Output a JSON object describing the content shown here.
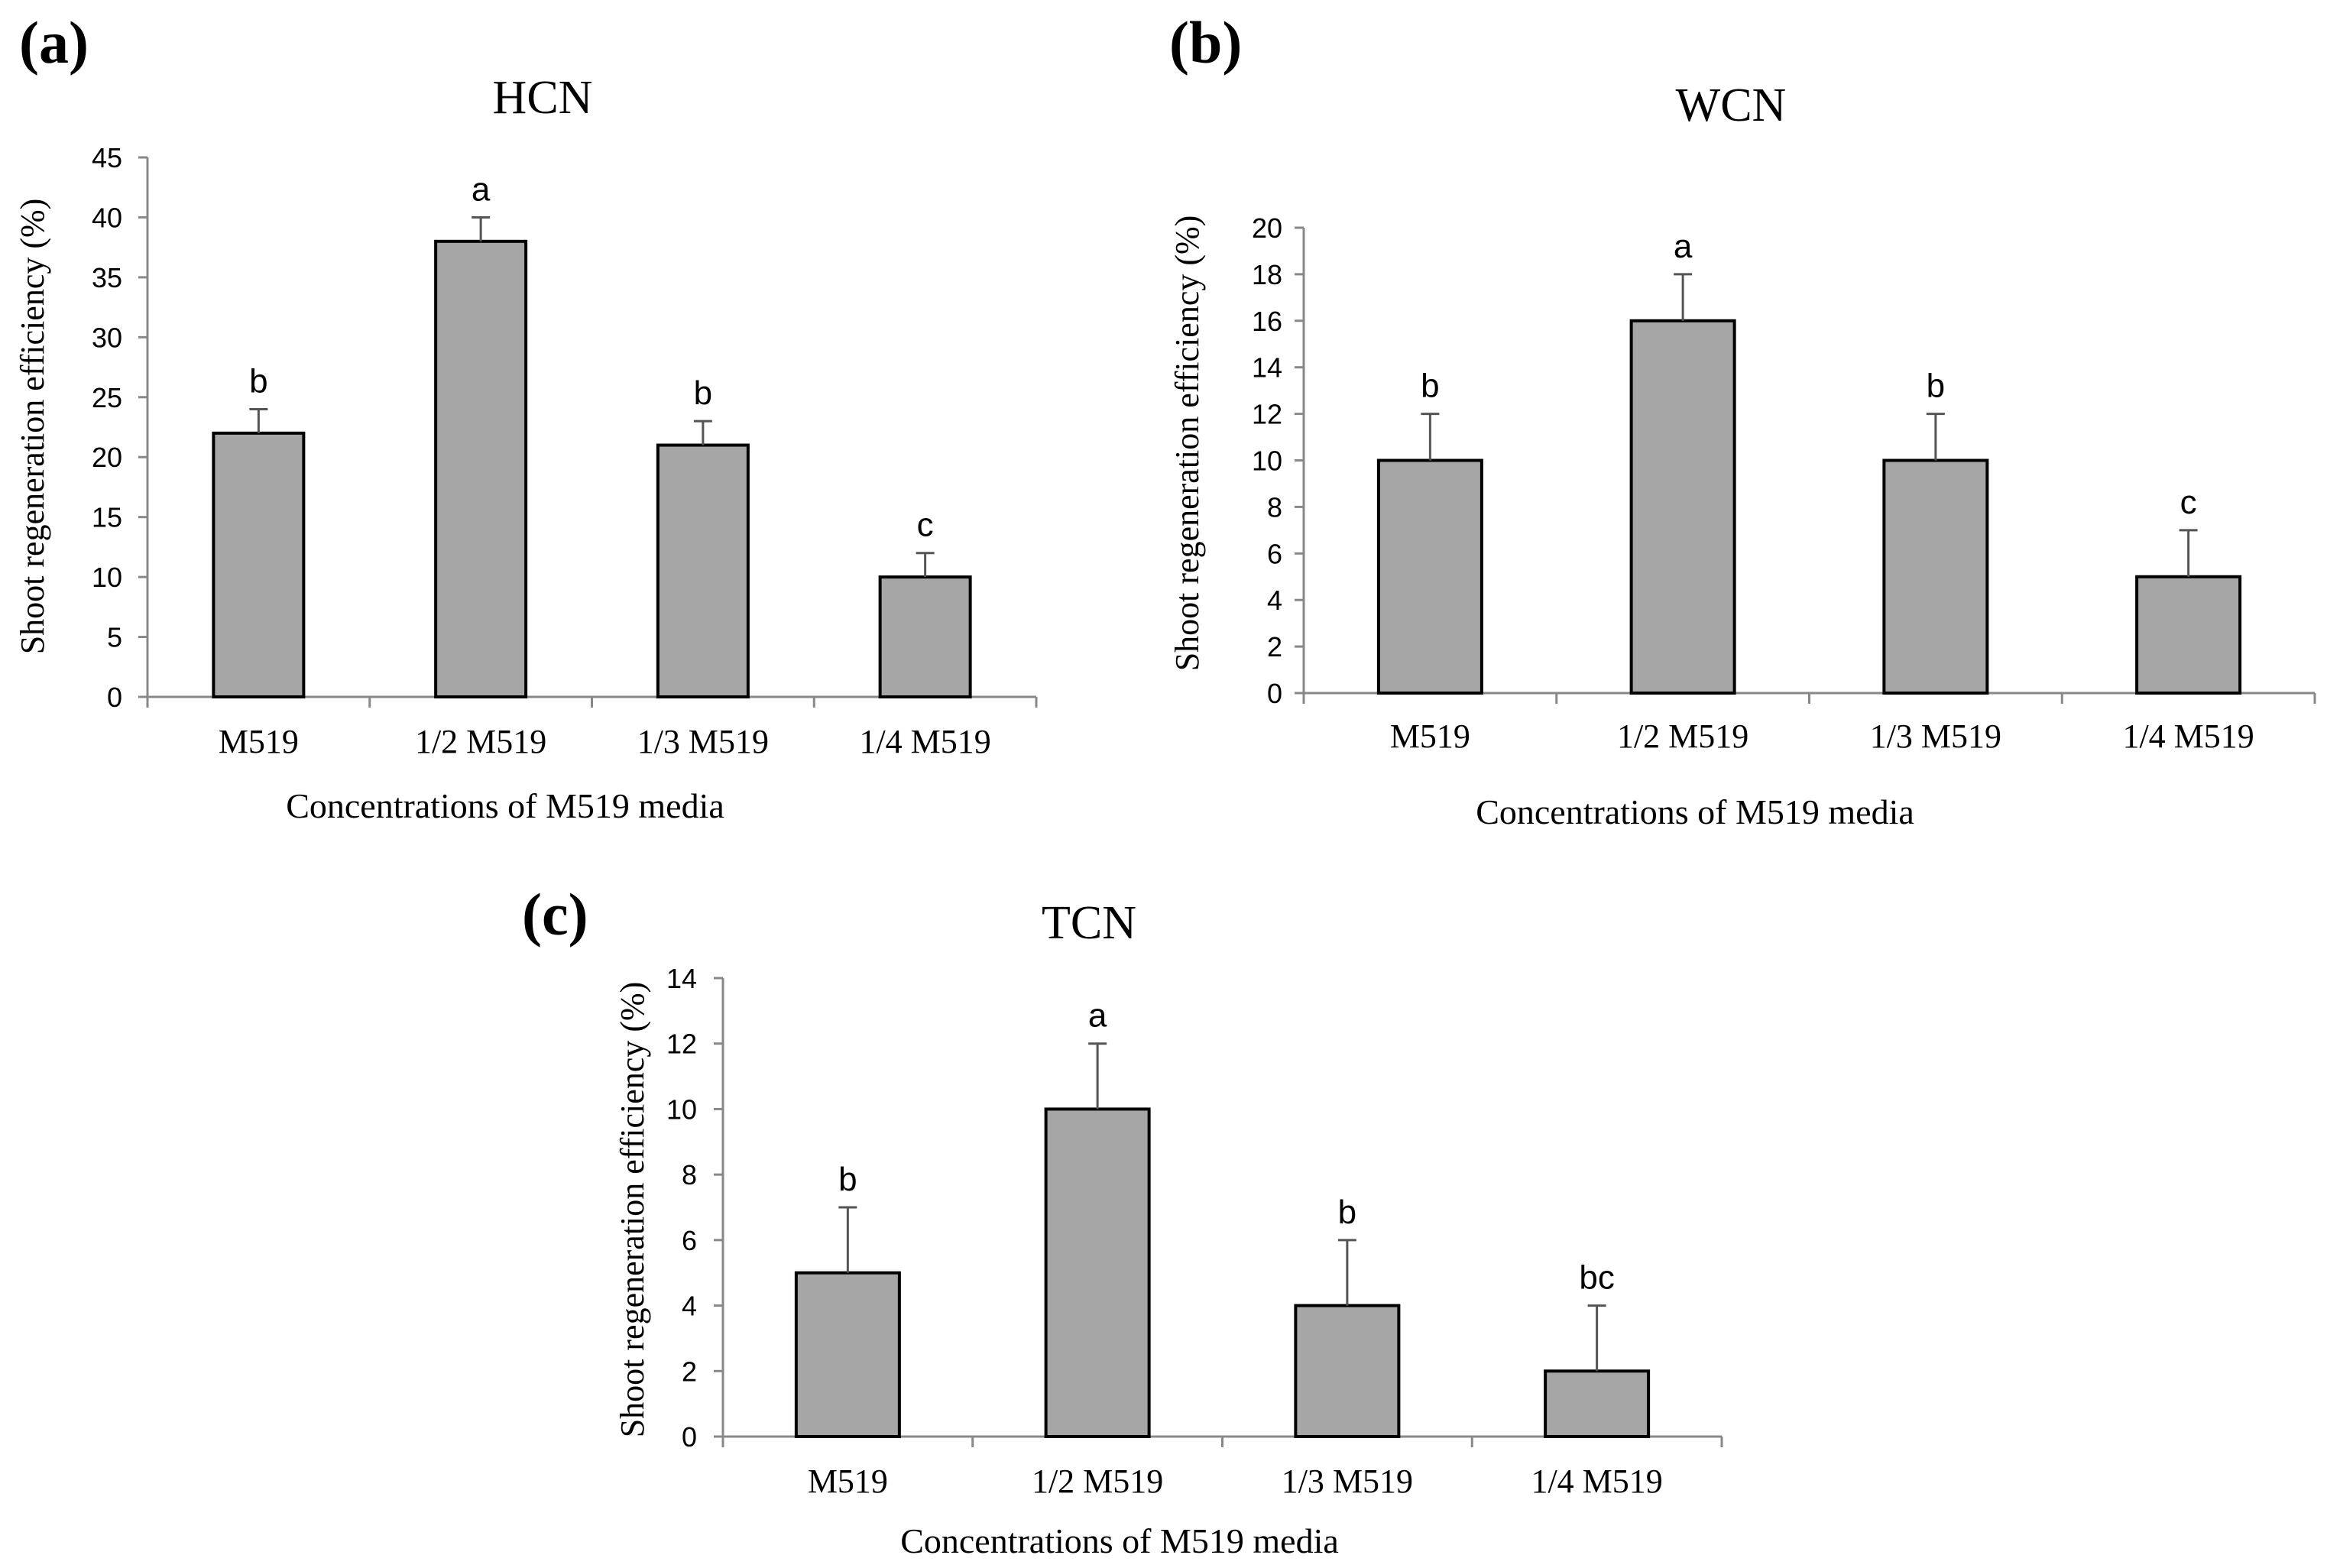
{
  "chart_data": [
    {
      "type": "bar",
      "panel": "(a)",
      "title": "HCN",
      "categories": [
        "M519",
        "1/2 M519",
        "1/3 M519",
        "1/4 M519"
      ],
      "values": [
        22,
        38,
        21,
        10
      ],
      "errors": [
        2,
        2,
        2,
        2
      ],
      "significance": [
        "b",
        "a",
        "b",
        "c"
      ],
      "xlabel": "Concentrations of  M519  media",
      "ylabel": "Shoot regeneration efficiency (%)",
      "ylim": [
        0,
        45
      ],
      "yticks": [
        0,
        5,
        10,
        15,
        20,
        25,
        30,
        35,
        40,
        45
      ],
      "grid": false
    },
    {
      "type": "bar",
      "panel": "(b)",
      "title": "WCN",
      "categories": [
        "M519",
        "1/2 M519",
        "1/3 M519",
        "1/4 M519"
      ],
      "values": [
        10,
        16,
        10,
        5
      ],
      "errors": [
        2,
        2,
        2,
        2
      ],
      "significance": [
        "b",
        "a",
        "b",
        "c"
      ],
      "xlabel": "Concentrations of M519  media",
      "ylabel": "Shoot regeneration efficiency (%)",
      "ylim": [
        0,
        20
      ],
      "yticks": [
        0,
        2,
        4,
        6,
        8,
        10,
        12,
        14,
        16,
        18,
        20
      ],
      "grid": false
    },
    {
      "type": "bar",
      "panel": "(c)",
      "title": "TCN",
      "categories": [
        "M519",
        "1/2 M519",
        "1/3 M519",
        "1/4 M519"
      ],
      "values": [
        5,
        10,
        4,
        2
      ],
      "errors": [
        2,
        2,
        2,
        2
      ],
      "significance": [
        "b",
        "a",
        "b",
        "bc"
      ],
      "xlabel": "Concentrations of M519  media",
      "ylabel": "Shoot regeneration efficiency (%)",
      "ylim": [
        0,
        14
      ],
      "yticks": [
        0,
        2,
        4,
        6,
        8,
        10,
        12,
        14
      ],
      "grid": false
    }
  ]
}
